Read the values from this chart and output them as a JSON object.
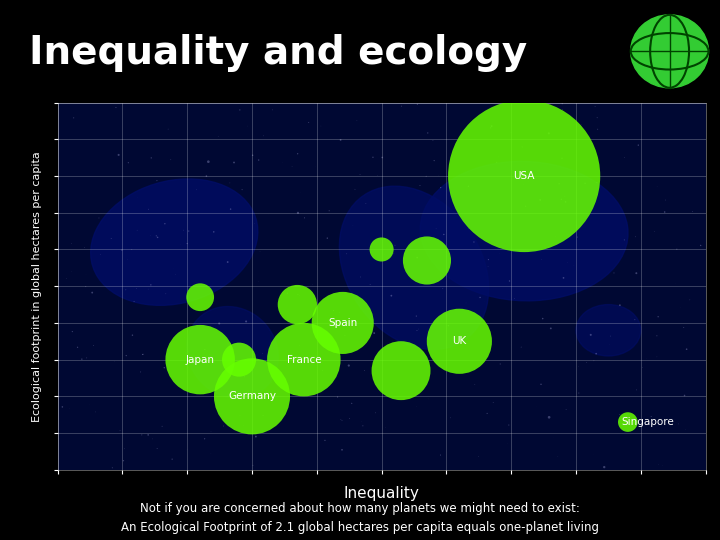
{
  "title": "Inequality and ecology",
  "ylabel": "Ecological footprint in global hectares per capita",
  "xlabel": "Inequality",
  "subtitle_line1": "Not if you are concerned about how many planets we might need to exist:",
  "subtitle_line2": "An Ecological Footprint of 2.1 global hectares per capita equals one-planet living",
  "background_color": "#000000",
  "plot_bg_color": "#000833",
  "bubble_color": "#66ff00",
  "text_color": "#ffffff",
  "grid_color": "#ffffff",
  "countries": [
    "USA",
    "Japan",
    "Germany",
    "France",
    "Spain",
    "UK",
    "Singapore"
  ],
  "x": [
    0.72,
    0.22,
    0.3,
    0.38,
    0.44,
    0.62,
    0.88
  ],
  "y": [
    9.5,
    4.5,
    3.5,
    4.5,
    5.5,
    5.0,
    2.8
  ],
  "size": [
    12000,
    2500,
    3000,
    2800,
    2000,
    2200,
    200
  ],
  "label_offsets_x": [
    0,
    0,
    0,
    0,
    0,
    0,
    0.03
  ],
  "label_offsets_y": [
    0,
    0,
    0,
    0,
    0,
    0,
    0
  ],
  "xlim": [
    0.0,
    1.0
  ],
  "ylim": [
    1.5,
    11.5
  ],
  "extra_bubbles_x": [
    0.28,
    0.37,
    0.5,
    0.53,
    0.57,
    0.22
  ],
  "extra_bubbles_y": [
    4.5,
    6.0,
    7.5,
    4.2,
    7.2,
    6.2
  ],
  "extra_bubbles_size": [
    600,
    800,
    300,
    1800,
    1200,
    400
  ],
  "city_seed": 42,
  "city_count": 300
}
